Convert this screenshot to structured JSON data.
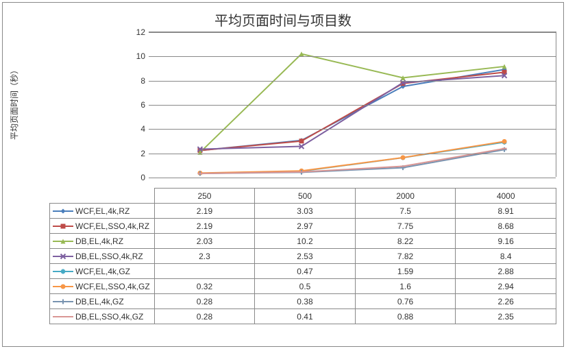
{
  "chart": {
    "type": "line",
    "title": "平均页面时间与项目数",
    "ylabel": "平均页面时间（秒）",
    "title_fontsize": 20,
    "label_fontsize": 12,
    "tick_fontsize": 12,
    "ylim": [
      0,
      12
    ],
    "ytick_step": 2,
    "yticks": [
      0,
      2,
      4,
      6,
      8,
      10,
      12
    ],
    "categories": [
      "250",
      "500",
      "2000",
      "4000"
    ],
    "background_color": "#ffffff",
    "grid_color": "#888888",
    "border_color": "#888888",
    "line_width": 2,
    "marker_size": 7,
    "series": [
      {
        "name": "WCF,EL,4k,RZ",
        "color": "#4a7ebb",
        "marker": "diamond",
        "values": [
          2.19,
          3.03,
          7.5,
          8.91
        ]
      },
      {
        "name": "WCF,EL,SSO,4k,RZ",
        "color": "#be4b48",
        "marker": "square",
        "values": [
          2.19,
          2.97,
          7.75,
          8.68
        ]
      },
      {
        "name": "DB,EL,4k,RZ",
        "color": "#98b954",
        "marker": "triangle",
        "values": [
          2.03,
          10.2,
          8.22,
          9.16
        ]
      },
      {
        "name": "DB,EL,SSO,4k,RZ",
        "color": "#7d60a0",
        "marker": "x",
        "values": [
          2.3,
          2.53,
          7.82,
          8.4
        ]
      },
      {
        "name": "WCF,EL,4k,GZ",
        "color": "#46aac5",
        "marker": "star",
        "values": [
          null,
          0.47,
          1.59,
          2.88
        ]
      },
      {
        "name": "WCF,EL,SSO,4k,GZ",
        "color": "#f79646",
        "marker": "circle",
        "values": [
          0.32,
          0.5,
          1.6,
          2.94
        ]
      },
      {
        "name": "DB,EL,4k,GZ",
        "color": "#7893b0",
        "marker": "plus",
        "values": [
          0.28,
          0.38,
          0.76,
          2.26
        ]
      },
      {
        "name": "DB,EL,SSO,4k,GZ",
        "color": "#d99694",
        "marker": "dash",
        "values": [
          0.28,
          0.41,
          0.88,
          2.35
        ]
      }
    ]
  }
}
